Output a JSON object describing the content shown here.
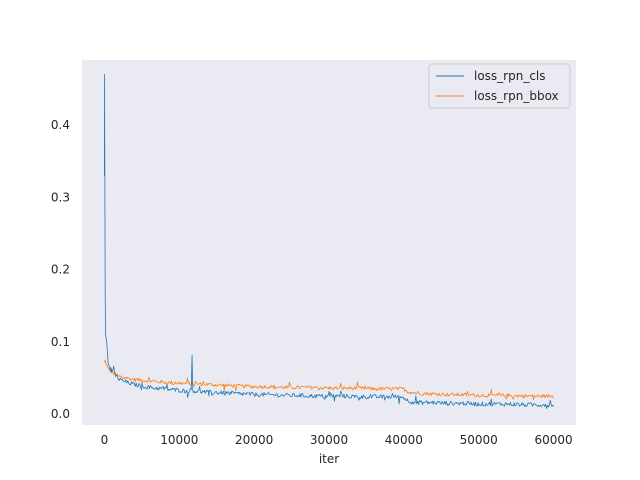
{
  "chart_data": {
    "type": "line",
    "title": "",
    "xlabel": "iter",
    "ylabel": "",
    "xlim": [
      -3000,
      63000
    ],
    "ylim": [
      -0.015,
      0.49
    ],
    "xticks": [
      0,
      10000,
      20000,
      30000,
      40000,
      50000,
      60000
    ],
    "xtick_labels": [
      "0",
      "10000",
      "20000",
      "30000",
      "40000",
      "50000",
      "60000"
    ],
    "yticks": [
      0.0,
      0.1,
      0.2,
      0.3,
      0.4
    ],
    "ytick_labels": [
      "0.0",
      "0.1",
      "0.2",
      "0.3",
      "0.4"
    ],
    "grid": false,
    "background": "#eaeaf2",
    "legend_position": "top-right",
    "series": [
      {
        "name": "loss_rpn_cls",
        "color": "#1f77b4",
        "x": [
          0,
          20,
          60,
          100,
          150,
          200,
          300,
          400,
          500,
          700,
          1000,
          1500,
          2000,
          3000,
          4000,
          5000,
          6000,
          7000,
          8000,
          9000,
          10000,
          11000,
          11600,
          11700,
          11800,
          12000,
          13000,
          14000,
          15000,
          16000,
          17000,
          18000,
          19000,
          20000,
          22000,
          24000,
          26000,
          28000,
          30000,
          32000,
          34000,
          36000,
          38000,
          39000,
          40000,
          40500,
          41000,
          42000,
          44000,
          46000,
          48000,
          50000,
          52000,
          54000,
          56000,
          58000,
          60000
        ],
        "y": [
          0.33,
          0.47,
          0.3,
          0.16,
          0.11,
          0.107,
          0.1,
          0.085,
          0.07,
          0.065,
          0.06,
          0.053,
          0.048,
          0.044,
          0.041,
          0.039,
          0.037,
          0.036,
          0.035,
          0.034,
          0.033,
          0.032,
          0.033,
          0.082,
          0.033,
          0.032,
          0.031,
          0.03,
          0.03,
          0.029,
          0.029,
          0.028,
          0.028,
          0.027,
          0.027,
          0.026,
          0.026,
          0.025,
          0.025,
          0.025,
          0.024,
          0.024,
          0.024,
          0.024,
          0.023,
          0.019,
          0.017,
          0.016,
          0.016,
          0.015,
          0.015,
          0.014,
          0.014,
          0.014,
          0.013,
          0.013,
          0.013
        ],
        "noise": 0.003
      },
      {
        "name": "loss_rpn_bbox",
        "color": "#ff7f0e",
        "x": [
          0,
          100,
          200,
          400,
          600,
          1000,
          1500,
          2000,
          3000,
          4000,
          5000,
          6000,
          8000,
          10000,
          12000,
          14000,
          16000,
          18000,
          20000,
          22000,
          24000,
          26000,
          28000,
          30000,
          32000,
          34000,
          36000,
          38000,
          40000,
          40500,
          41000,
          42000,
          44000,
          46000,
          48000,
          50000,
          52000,
          54000,
          56000,
          58000,
          60000
        ],
        "y": [
          0.072,
          0.075,
          0.07,
          0.066,
          0.062,
          0.058,
          0.055,
          0.052,
          0.05,
          0.048,
          0.047,
          0.046,
          0.044,
          0.043,
          0.042,
          0.041,
          0.04,
          0.039,
          0.038,
          0.038,
          0.037,
          0.037,
          0.037,
          0.036,
          0.036,
          0.036,
          0.035,
          0.035,
          0.035,
          0.031,
          0.03,
          0.029,
          0.028,
          0.027,
          0.027,
          0.026,
          0.026,
          0.026,
          0.025,
          0.025,
          0.025
        ],
        "noise": 0.0025
      }
    ]
  }
}
